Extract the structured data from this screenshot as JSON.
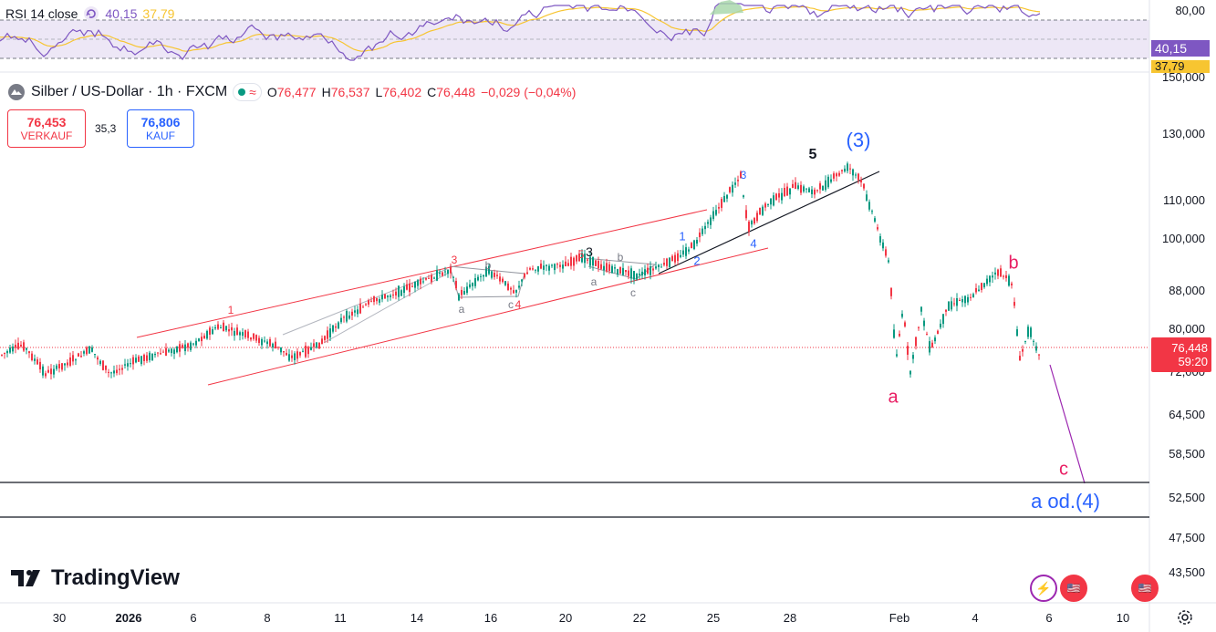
{
  "rsi": {
    "title": "RSI 14 close",
    "value1": "40,15",
    "value2": "37,79",
    "scale": [
      "80,00"
    ],
    "badge_value": "40,15",
    "badge_ma": "37,79",
    "colors": {
      "rsi": "#7e57c2",
      "ma": "#f7c531",
      "band": "#ede7f6"
    }
  },
  "symbol": {
    "name": "Silber / US-Dollar · 1h · FXCM",
    "open_label": "O",
    "open": "76,477",
    "high_label": "H",
    "high": "76,537",
    "low_label": "L",
    "low": "76,402",
    "close_label": "C",
    "close": "76,448",
    "change": "−0,029 (−0,04%)"
  },
  "trade": {
    "sell_price": "76,453",
    "sell_label": "VERKAUF",
    "spread": "35,3",
    "buy_price": "76,806",
    "buy_label": "KAUF"
  },
  "price_axis": {
    "labels": [
      "150,000",
      "130,000",
      "110,000",
      "100,000",
      "88,000",
      "80,000",
      "72,000",
      "64,500",
      "58,500",
      "52,500",
      "47,500",
      "43,500"
    ],
    "current_price": "76,448",
    "countdown": "59:20"
  },
  "time_axis": {
    "labels": [
      "30",
      "2026",
      "6",
      "8",
      "11",
      "14",
      "16",
      "20",
      "22",
      "25",
      "28",
      "Feb",
      "4",
      "6",
      "10"
    ]
  },
  "waves": {
    "w3_big": "(3)",
    "w5": "5",
    "a_big": "a",
    "b_big": "b",
    "c_big": "c",
    "target": "a od.(4)",
    "sub": [
      "1",
      "3",
      "a",
      "b",
      "c",
      "4",
      "5",
      "3",
      "a",
      "b",
      "c",
      "1",
      "2",
      "3",
      "4"
    ]
  },
  "logo": {
    "text": "TradingView"
  },
  "colors": {
    "up": "#089981",
    "down": "#f23645",
    "blue": "#2962ff",
    "pink": "#e91e63",
    "accent": "#2962ff"
  }
}
